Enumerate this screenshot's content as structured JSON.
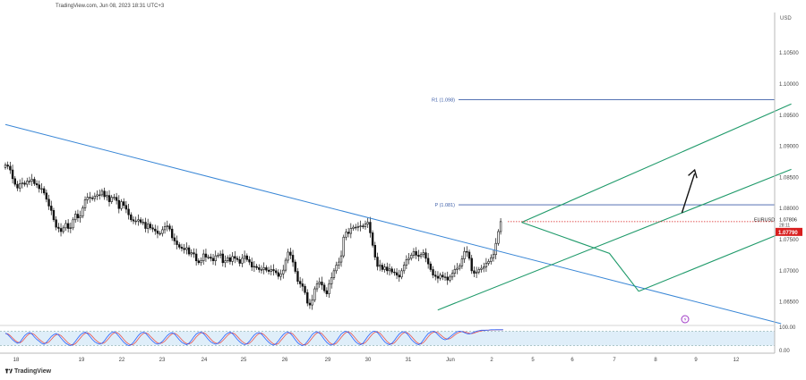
{
  "header": {
    "text": "TradingView.com, Jun 08, 2023 18:31 UTC+3"
  },
  "brand": {
    "text": "TradingView"
  },
  "chart_data": {
    "type": "candlestick",
    "symbol": "EURUSD",
    "currency_label": "USD",
    "price_axis": {
      "ylim": [
        1.0615,
        1.1115
      ],
      "ticks": [
        1.105,
        1.1,
        1.095,
        1.09,
        1.085,
        1.08,
        1.075,
        1.07,
        1.065
      ],
      "tick_labels": [
        "1.10500",
        "1.10000",
        "1.09500",
        "1.09000",
        "1.08500",
        "1.08000",
        "1.07500",
        "1.07000",
        "1.06500"
      ]
    },
    "time_axis": {
      "labels": [
        "18",
        "19",
        "22",
        "23",
        "24",
        "25",
        "26",
        "29",
        "30",
        "31",
        "Jun",
        "2",
        "5",
        "6",
        "7",
        "8",
        "9",
        "12"
      ]
    },
    "price_tags": [
      {
        "label": "EURUSD",
        "value": 1.07806,
        "value_label": "1.07806",
        "sub_label": "28:11",
        "color": "#ffffff",
        "text_color": "#111111"
      },
      {
        "label": "",
        "value": 1.0779,
        "value_label": "1.07790",
        "color": "#d81e1e",
        "text_color": "#ffffff"
      }
    ],
    "levels": [
      {
        "label": "R1 (1.098)",
        "value": 1.0975,
        "color": "#3d5ea8"
      },
      {
        "label": "P (1.081)",
        "value": 1.0806,
        "color": "#3d5ea8"
      }
    ],
    "close_guide": {
      "value": 1.0779,
      "color": "#d81e1e"
    },
    "trendline": {
      "color": "#3a87d6",
      "points": [
        [
          0.0,
          1.0935
        ],
        [
          61.0,
          1.0615
        ]
      ]
    },
    "channel": {
      "color": "#1f9a6a",
      "lower": [
        [
          34.0,
          1.0637
        ],
        [
          61.8,
          1.0863
        ]
      ],
      "upper": [
        [
          40.6,
          1.0778
        ],
        [
          61.8,
          1.0968
        ]
      ],
      "bottom": [
        [
          49.8,
          1.0667
        ],
        [
          61.8,
          1.0767
        ]
      ],
      "fork": [
        [
          40.6,
          1.0778
        ],
        [
          47.5,
          1.0728
        ],
        [
          49.8,
          1.0667
        ]
      ]
    },
    "arrow": {
      "color": "#111111",
      "from": [
        53.2,
        1.0793
      ],
      "to": [
        54.2,
        1.0862
      ]
    },
    "candles": {
      "x_start": 0.0,
      "x_step": 0.19,
      "close": [
        1.087,
        1.0868,
        1.0862,
        1.0848,
        1.0839,
        1.0833,
        1.084,
        1.0841,
        1.0839,
        1.0844,
        1.0844,
        1.0847,
        1.084,
        1.0838,
        1.0832,
        1.0832,
        1.0825,
        1.0815,
        1.0804,
        1.0797,
        1.0782,
        1.077,
        1.0768,
        1.0763,
        1.0769,
        1.0776,
        1.0768,
        1.0769,
        1.0782,
        1.0791,
        1.0785,
        1.0788,
        1.0801,
        1.0814,
        1.0818,
        1.0817,
        1.0816,
        1.082,
        1.0822,
        1.0822,
        1.0828,
        1.0819,
        1.0821,
        1.0811,
        1.0818,
        1.0818,
        1.0813,
        1.08,
        1.0811,
        1.0805,
        1.0799,
        1.079,
        1.0782,
        1.078,
        1.078,
        1.0782,
        1.0778,
        1.0778,
        1.0768,
        1.0775,
        1.0769,
        1.0767,
        1.0764,
        1.076,
        1.076,
        1.0766,
        1.0771,
        1.0772,
        1.0767,
        1.0753,
        1.0748,
        1.0742,
        1.0738,
        1.0736,
        1.0734,
        1.0737,
        1.0727,
        1.0729,
        1.0727,
        1.0716,
        1.0713,
        1.0716,
        1.0727,
        1.0722,
        1.0722,
        1.072,
        1.0716,
        1.0724,
        1.0725,
        1.0727,
        1.0713,
        1.0716,
        1.0721,
        1.0715,
        1.0723,
        1.072,
        1.0718,
        1.0712,
        1.072,
        1.0724,
        1.0718,
        1.0714,
        1.0706,
        1.0707,
        1.0705,
        1.0702,
        1.0702,
        1.0705,
        1.0701,
        1.0699,
        1.0702,
        1.07,
        1.0697,
        1.0691,
        1.0695,
        1.0701,
        1.0717,
        1.073,
        1.0725,
        1.0714,
        1.0699,
        1.0683,
        1.0679,
        1.0675,
        1.0665,
        1.0648,
        1.0645,
        1.0653,
        1.0671,
        1.0679,
        1.0682,
        1.0677,
        1.0668,
        1.0663,
        1.0679,
        1.0689,
        1.07,
        1.0709,
        1.0714,
        1.0724,
        1.0754,
        1.0762,
        1.076,
        1.0768,
        1.077,
        1.077,
        1.0771,
        1.0772,
        1.0771,
        1.0775,
        1.0778,
        1.0761,
        1.0741,
        1.0722,
        1.0707,
        1.0709,
        1.0702,
        1.0706,
        1.07,
        1.0703,
        1.0698,
        1.0697,
        1.0693,
        1.069,
        1.07,
        1.0709,
        1.0718,
        1.072,
        1.0725,
        1.0731,
        1.0725,
        1.0723,
        1.0726,
        1.0729,
        1.072,
        1.0711,
        1.0702,
        1.0693,
        1.0691,
        1.0688,
        1.0693,
        1.069,
        1.069,
        1.0685,
        1.069,
        1.0696,
        1.0702,
        1.0704,
        1.0708,
        1.0719,
        1.0731,
        1.073,
        1.072,
        1.07,
        1.0696,
        1.0698,
        1.0702,
        1.0704,
        1.0706,
        1.0712,
        1.0715,
        1.0721,
        1.0726,
        1.0744,
        1.0763,
        1.0779
      ]
    },
    "oscillator": {
      "labels": [
        "100.00",
        "0.00"
      ],
      "upper_band": 80,
      "lower_band": 20,
      "k_color": "#2962ff",
      "d_color": "#e8534f",
      "k": [
        72,
        66,
        55,
        44,
        36,
        30,
        34,
        48,
        62,
        70,
        74,
        68,
        56,
        46,
        38,
        30,
        26,
        34,
        46,
        58,
        66,
        70,
        64,
        52,
        40,
        30,
        24,
        20,
        26,
        38,
        52,
        64,
        72,
        76,
        70,
        58,
        46,
        36,
        30,
        26,
        30,
        40,
        54,
        66,
        74,
        78,
        70,
        58,
        46,
        34,
        26,
        20,
        24,
        34,
        48,
        62,
        72,
        76,
        72,
        60,
        48,
        38,
        30,
        26,
        30,
        38,
        50,
        62,
        70,
        74,
        68,
        56,
        44,
        34,
        28,
        24,
        30,
        42,
        56,
        68,
        74,
        76,
        70,
        58,
        46,
        36,
        30,
        26,
        30,
        40,
        52,
        64,
        72,
        76,
        70,
        58,
        46,
        36,
        28,
        24,
        28,
        38,
        52,
        64,
        72,
        74,
        68,
        56,
        44,
        34,
        26,
        22,
        28,
        40,
        54,
        66,
        74,
        76,
        70,
        58,
        44,
        32,
        24,
        20,
        26,
        38,
        52,
        66,
        74,
        78,
        72,
        60,
        46,
        34,
        26,
        22,
        28,
        40,
        54,
        68,
        76,
        80,
        74,
        62,
        48,
        36,
        28,
        24,
        30,
        44,
        58,
        70,
        78,
        80,
        74,
        62,
        48,
        36,
        28,
        24,
        30,
        42,
        56,
        68,
        76,
        78,
        72,
        60,
        46,
        36,
        28,
        24,
        30,
        44,
        58,
        70,
        76,
        80,
        76,
        66,
        56,
        48,
        44,
        48,
        56,
        64,
        72,
        78,
        80,
        78,
        74,
        70,
        68,
        72,
        76,
        80,
        82,
        84,
        84,
        84,
        85,
        86,
        86,
        86,
        86,
        86,
        86
      ],
      "d": [
        70,
        69,
        62,
        52,
        42,
        35,
        32,
        38,
        50,
        62,
        70,
        71,
        66,
        56,
        46,
        38,
        31,
        30,
        35,
        46,
        57,
        65,
        67,
        62,
        52,
        41,
        31,
        25,
        23,
        28,
        39,
        51,
        63,
        71,
        73,
        68,
        58,
        47,
        38,
        31,
        29,
        32,
        41,
        53,
        65,
        73,
        75,
        69,
        58,
        46,
        35,
        27,
        23,
        26,
        35,
        48,
        61,
        70,
        73,
        69,
        59,
        49,
        39,
        31,
        29,
        32,
        39,
        50,
        61,
        69,
        71,
        66,
        56,
        45,
        35,
        29,
        27,
        32,
        43,
        56,
        66,
        73,
        74,
        68,
        58,
        47,
        37,
        31,
        29,
        32,
        41,
        52,
        63,
        71,
        73,
        68,
        58,
        47,
        37,
        30,
        27,
        30,
        39,
        51,
        63,
        70,
        72,
        66,
        56,
        45,
        35,
        27,
        25,
        29,
        41,
        53,
        65,
        72,
        74,
        68,
        57,
        45,
        33,
        25,
        23,
        28,
        39,
        52,
        64,
        73,
        75,
        70,
        59,
        47,
        35,
        27,
        25,
        30,
        41,
        54,
        66,
        75,
        77,
        72,
        61,
        49,
        37,
        29,
        27,
        33,
        44,
        57,
        69,
        76,
        77,
        72,
        61,
        49,
        37,
        29,
        27,
        32,
        43,
        55,
        67,
        74,
        75,
        69,
        59,
        47,
        36,
        29,
        27,
        33,
        44,
        57,
        68,
        75,
        77,
        74,
        66,
        57,
        50,
        47,
        49,
        56,
        64,
        71,
        76,
        78,
        77,
        74,
        71,
        70,
        72,
        76,
        79,
        81,
        83,
        84,
        84,
        85,
        85,
        86,
        86,
        86,
        86
      ]
    }
  }
}
